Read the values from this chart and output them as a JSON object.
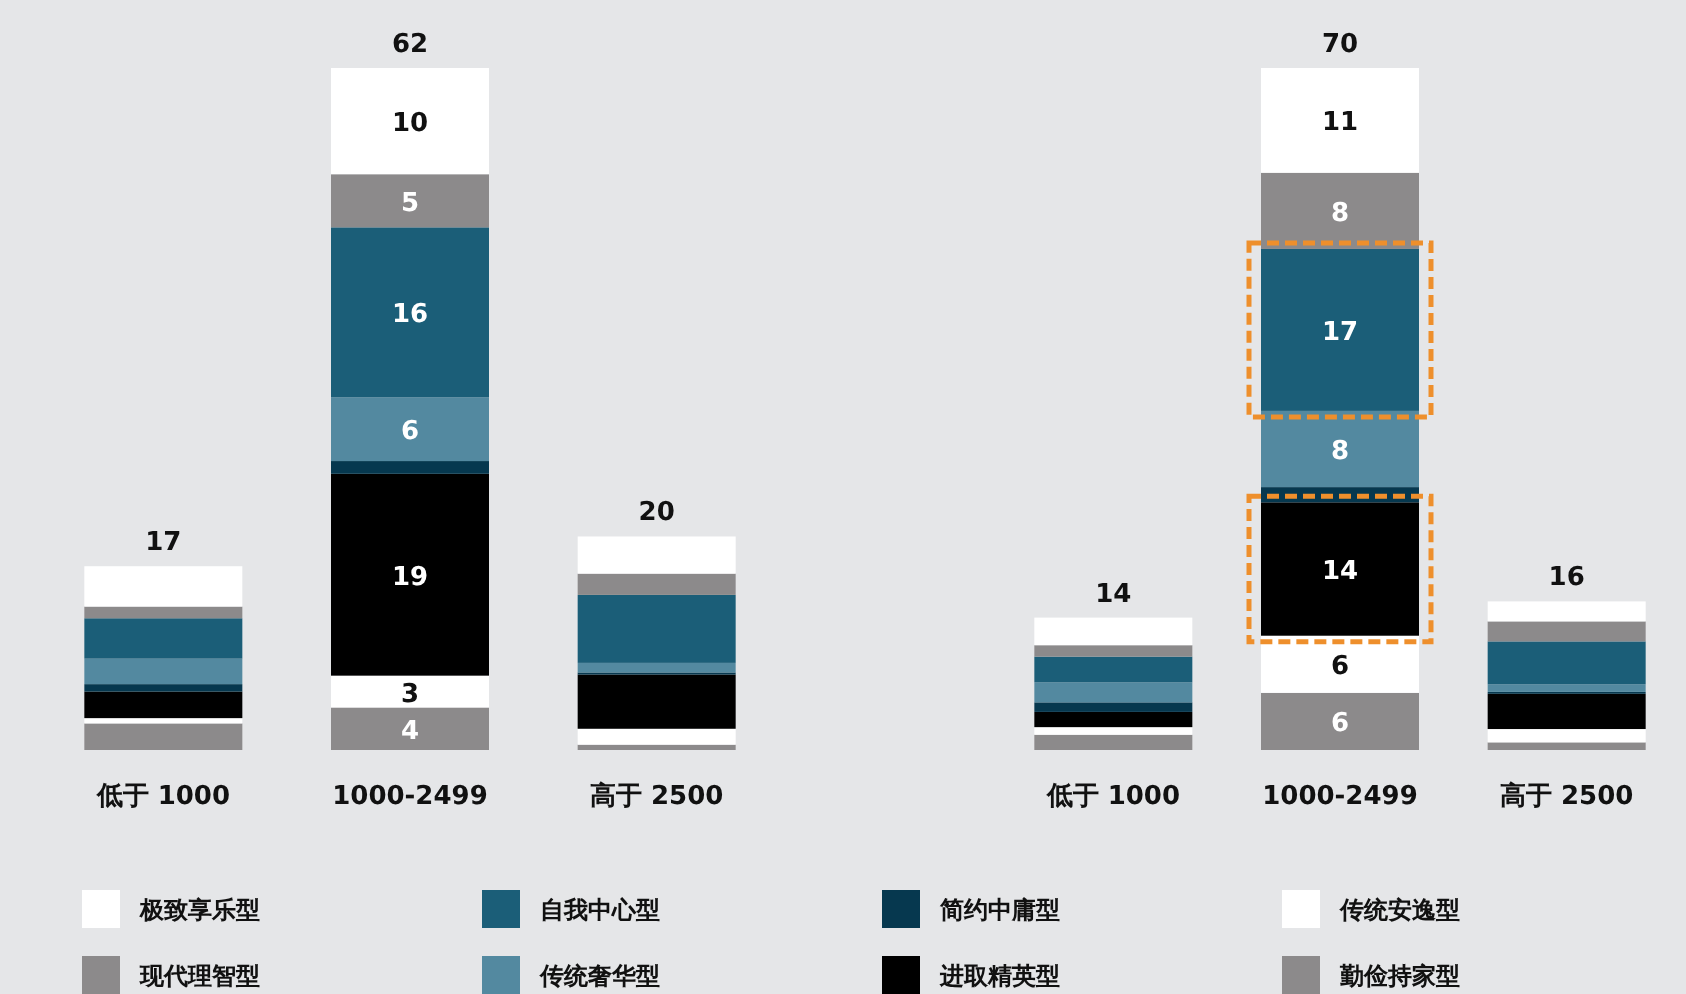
{
  "chart_data": [
    {
      "type": "bar",
      "stacked": true,
      "legend": "bottom",
      "categories": [
        "低于 1000",
        "1000-2499",
        "高于 2500"
      ],
      "totals": [
        "17",
        "62",
        "20"
      ],
      "series": [
        {
          "name": "勤俭持家型",
          "color": "#8c8a8b",
          "values": [
            2.5,
            4,
            0.5
          ],
          "value_labels": [
            null,
            "4",
            null
          ]
        },
        {
          "name": "传统安逸型",
          "color": "#ffffff",
          "values": [
            0.5,
            3,
            1.5
          ],
          "value_labels": [
            null,
            "3",
            null
          ]
        },
        {
          "name": "进取精英型",
          "color": "#000000",
          "values": [
            2.5,
            19,
            5.1
          ],
          "value_labels": [
            null,
            "19",
            null
          ]
        },
        {
          "name": "简约中庸型",
          "color": "#06384f",
          "values": [
            0.7,
            1.2,
            0.2
          ],
          "value_labels": [
            null,
            null,
            null
          ]
        },
        {
          "name": "传统奢华型",
          "color": "#5389a0",
          "values": [
            2.4,
            6,
            0.9
          ],
          "value_labels": [
            null,
            "6",
            null
          ]
        },
        {
          "name": "自我中心型",
          "color": "#1b5e78",
          "values": [
            3.8,
            16,
            6.4
          ],
          "value_labels": [
            null,
            "16",
            null
          ]
        },
        {
          "name": "现代理智型",
          "color": "#8c8a8b",
          "values": [
            1.1,
            5,
            2
          ],
          "value_labels": [
            null,
            "5",
            null
          ]
        },
        {
          "name": "极致享乐型",
          "color": "#ffffff",
          "values": [
            3.8,
            10,
            3.5
          ],
          "value_labels": [
            null,
            "10",
            null
          ]
        }
      ]
    },
    {
      "type": "bar",
      "stacked": true,
      "categories": [
        "低于 1000",
        "1000-2499",
        "高于 2500"
      ],
      "totals": [
        "14",
        "70",
        "16"
      ],
      "series": [
        {
          "name": "勤俭持家型",
          "color": "#8c8a8b",
          "values": [
            1.6,
            6,
            0.8
          ],
          "value_labels": [
            null,
            "6",
            null
          ]
        },
        {
          "name": "传统安逸型",
          "color": "#ffffff",
          "values": [
            0.8,
            6,
            1.4
          ],
          "value_labels": [
            null,
            "6",
            null
          ]
        },
        {
          "name": "进取精英型",
          "color": "#000000",
          "values": [
            1.6,
            14,
            3.7
          ],
          "value_labels": [
            null,
            "14",
            null
          ]
        },
        {
          "name": "简约中庸型",
          "color": "#06384f",
          "values": [
            1.0,
            1.6,
            0.2
          ],
          "value_labels": [
            null,
            null,
            null
          ]
        },
        {
          "name": "传统奢华型",
          "color": "#5389a0",
          "values": [
            2.1,
            8,
            0.8
          ],
          "value_labels": [
            null,
            "8",
            null
          ]
        },
        {
          "name": "自我中心型",
          "color": "#1b5e78",
          "values": [
            2.7,
            17,
            4.5
          ],
          "value_labels": [
            null,
            "17",
            null
          ]
        },
        {
          "name": "现代理智型",
          "color": "#8c8a8b",
          "values": [
            1.2,
            8,
            2.1
          ],
          "value_labels": [
            null,
            "8",
            null
          ]
        },
        {
          "name": "极致享乐型",
          "color": "#ffffff",
          "values": [
            2.9,
            11,
            2.1
          ],
          "value_labels": [
            null,
            "11",
            null
          ]
        }
      ]
    }
  ]
}
